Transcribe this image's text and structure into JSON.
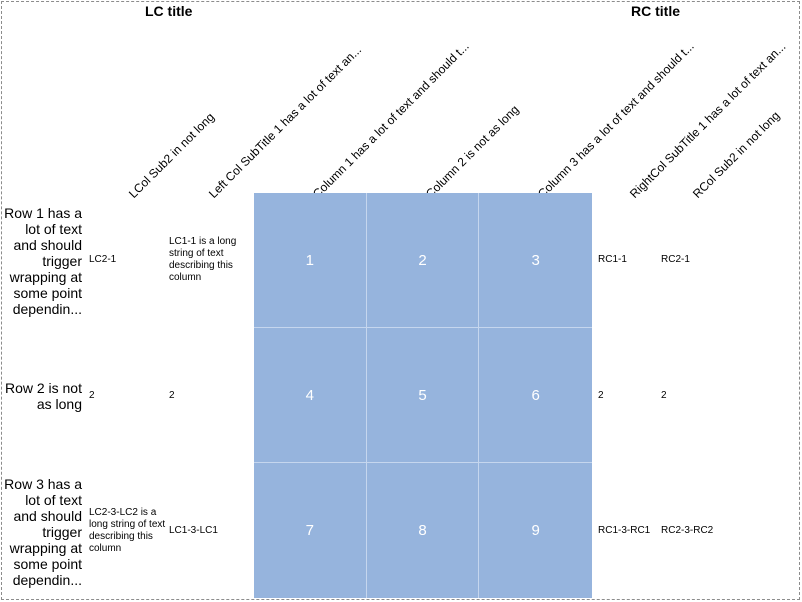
{
  "titles": {
    "left": "LC title",
    "right": "RC title"
  },
  "columns": {
    "lc_sub2": "LCol Sub2 in not long",
    "lc_sub1": "Left Col SubTitle 1 has a lot of text an...",
    "col1": "Column 1 has a lot of text and should t...",
    "col2": "Column 2 is not as long",
    "col3": "Column 3 has a lot of text and should t...",
    "rc_sub1": "RightCol SubTitle 1 has a lot of text an...",
    "rc_sub2": "RCol Sub2 in not long"
  },
  "rows": [
    {
      "label": "Row 1 has a lot of text and should trigger wrapping at some point dependin...",
      "lc2": "LC2-1",
      "lc1": "LC1-1 is a long string of text describing this column",
      "values": [
        "1",
        "2",
        "3"
      ],
      "rc1": "RC1-1",
      "rc2": "RC2-1"
    },
    {
      "label": "Row 2 is not as long",
      "lc2": "2",
      "lc1": "2",
      "values": [
        "4",
        "5",
        "6"
      ],
      "rc1": "2",
      "rc2": "2"
    },
    {
      "label": "Row 3 has a lot of text and should trigger wrapping at some point dependin...",
      "lc2": "LC2-3-LC2 is a long string of text describing this column",
      "lc1": "LC1-3-LC1",
      "values": [
        "7",
        "8",
        "9"
      ],
      "rc1": "RC1-3-RC1",
      "rc2": "RC2-3-RC2"
    }
  ],
  "colors": {
    "grid_fill": "#96b4dd",
    "grid_line": "#c5d6ee",
    "grid_text": "#ffffff"
  }
}
